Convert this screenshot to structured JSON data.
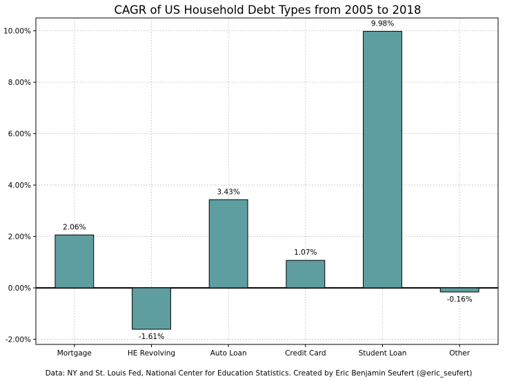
{
  "chart_data": {
    "type": "bar",
    "title": "CAGR of US Household Debt Types from 2005 to 2018",
    "xlabel": "",
    "ylabel": "",
    "categories": [
      "Mortgage",
      "HE Revolving",
      "Auto Loan",
      "Credit Card",
      "Student Loan",
      "Other"
    ],
    "values": [
      2.06,
      -1.61,
      3.43,
      1.07,
      9.98,
      -0.16
    ],
    "data_labels": [
      "2.06%",
      "-1.61%",
      "3.43%",
      "1.07%",
      "9.98%",
      "-0.16%"
    ],
    "ylim": [
      -2.2,
      10.5
    ],
    "yticks": [
      -2,
      0,
      2,
      4,
      6,
      8,
      10
    ],
    "ytick_labels": [
      "-2.00%",
      "0.00%",
      "2.00%",
      "4.00%",
      "6.00%",
      "8.00%",
      "10.00%"
    ],
    "grid": true,
    "legend": "none",
    "bar_color": "#5f9ea0",
    "bar_edge_color": "#000000",
    "zero_line_color": "#000000",
    "grid_color": "#b0b0b0",
    "footnote": "Data: NY and St. Louis Fed, National Center for Education Statistics. Created by Eric Benjamin Seufert (@eric_seufert)"
  }
}
